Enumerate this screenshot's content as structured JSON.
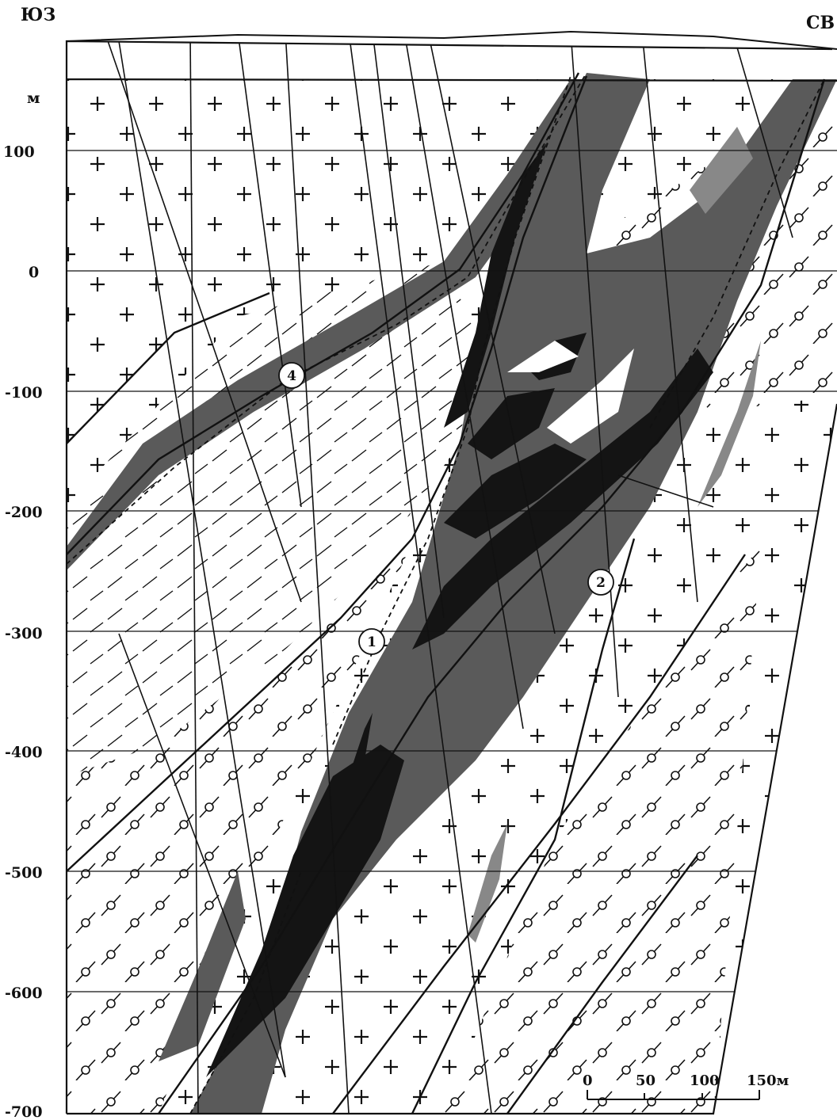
{
  "labels": {
    "southwest": "ЮЗ",
    "northeast": "СВ",
    "elevation_unit": "м"
  },
  "elevations": [
    "100",
    "0",
    "-100",
    "-200",
    "-300",
    "-400",
    "-500",
    "-600",
    "-700"
  ],
  "callouts": [
    "1",
    "2",
    "4"
  ],
  "scale_bar": {
    "ticks": [
      "0",
      "50",
      "100",
      "150м"
    ]
  },
  "colors": {
    "background": "#ffffff",
    "line": "#111111",
    "dark_zone": "#5a5a5a",
    "ore_body": "#141414",
    "light_lens": "#888888"
  },
  "icons": {
    "granite_symbol": "plus-sign",
    "gneiss_symbol": "circle-on-slash",
    "schist_symbol": "dash"
  }
}
